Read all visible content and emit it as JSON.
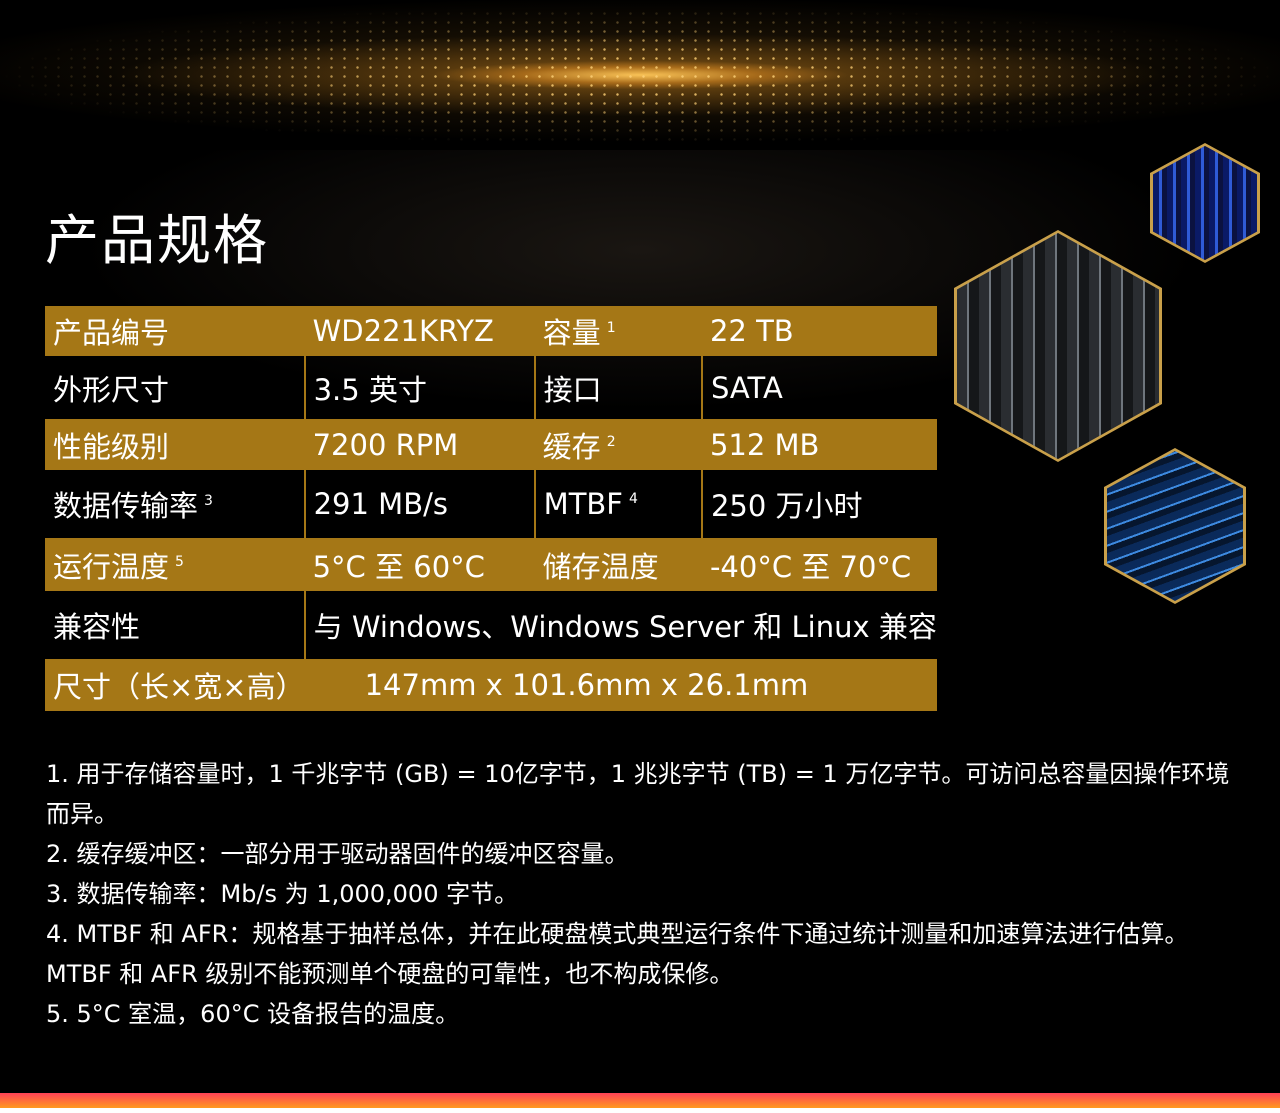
{
  "title": "产品规格",
  "colors": {
    "gold": "#a57716",
    "background": "#000000",
    "bottom_bar": [
      "#ff4157",
      "#ff9a1e"
    ]
  },
  "specs": [
    {
      "style": "gold",
      "cells": [
        {
          "text": "产品编号"
        },
        {
          "text": "WD221KRYZ"
        },
        {
          "text": "容量",
          "sup": "1"
        },
        {
          "text": "22 TB"
        }
      ]
    },
    {
      "style": "dark",
      "cells": [
        {
          "text": "外形尺寸"
        },
        {
          "text": "3.5 英寸"
        },
        {
          "text": "接口"
        },
        {
          "text": "SATA"
        }
      ]
    },
    {
      "style": "gold",
      "cells": [
        {
          "text": "性能级别"
        },
        {
          "text": "7200 RPM"
        },
        {
          "text": "缓存",
          "sup": "2"
        },
        {
          "text": "512 MB"
        }
      ]
    },
    {
      "style": "dark",
      "cells": [
        {
          "text": "数据传输率",
          "sup": "3"
        },
        {
          "text": "291 MB/s"
        },
        {
          "text": "MTBF",
          "sup": "4"
        },
        {
          "text": "250 万小时"
        }
      ]
    },
    {
      "style": "gold",
      "cells": [
        {
          "text": "运行温度",
          "sup": "5"
        },
        {
          "text": "5°C 至 60°C"
        },
        {
          "text": "储存温度"
        },
        {
          "text": "-40°C 至 70°C"
        }
      ]
    },
    {
      "style": "dark",
      "cells": [
        {
          "text": "兼容性"
        },
        {
          "text": "与 Windows、Windows Server 和 Linux 兼容"
        }
      ]
    },
    {
      "style": "gold",
      "cells": [
        {
          "text": "尺寸（长×宽×高）"
        },
        {
          "text": "147mm x 101.6mm x 26.1mm"
        }
      ]
    }
  ],
  "notes": [
    "1. 用于存储容量时，1 千兆字节 (GB) = 10亿字节，1 兆兆字节 (TB) = 1 万亿字节。可访问总容量因操作环境而异。",
    "2. 缓存缓冲区：一部分用于驱动器固件的缓冲区容量。",
    "3. 数据传输率：Mb/s 为 1,000,000 字节。",
    "4. MTBF 和 AFR：规格基于抽样总体，并在此硬盘模式典型运行条件下通过统计测量和加速算法进行估算。MTBF 和 AFR 级别不能预测单个硬盘的可靠性，也不构成保修。",
    "5. 5°C 室温，60°C 设备报告的温度。"
  ]
}
